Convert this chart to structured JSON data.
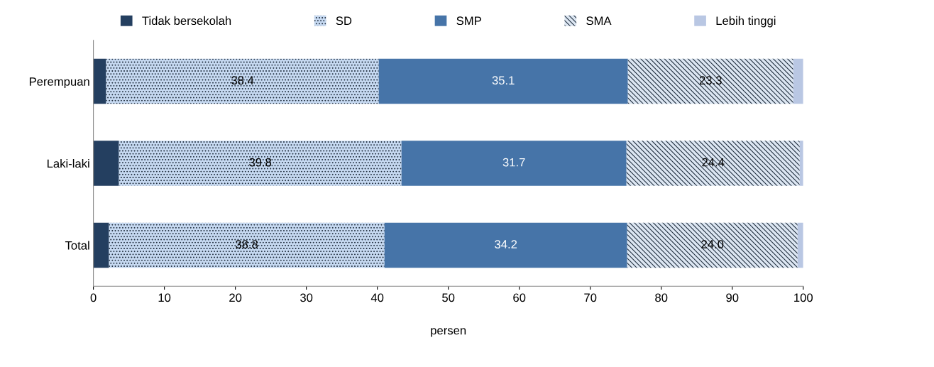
{
  "chart_data": {
    "type": "bar",
    "orientation": "horizontal",
    "stacked": true,
    "xlabel": "persen",
    "categories": [
      "Perempuan",
      "Laki-laki",
      "Total"
    ],
    "series": [
      {
        "name": "Tidak bersekolah",
        "color": "#243f60",
        "values": [
          1.8,
          3.6,
          2.2
        ]
      },
      {
        "name": "SD",
        "color": "#c6d9f1",
        "values": [
          38.4,
          39.8,
          38.8
        ],
        "value_labels": [
          "38.4",
          "39.8",
          "38.8"
        ]
      },
      {
        "name": "SMP",
        "color": "#4674a8",
        "values": [
          35.1,
          31.7,
          34.2
        ],
        "value_labels": [
          "35.1",
          "31.7",
          "34.2"
        ]
      },
      {
        "name": "SMA",
        "color": "#dce6f2",
        "values": [
          23.3,
          24.4,
          24.0
        ],
        "value_labels": [
          "23.3",
          "24.4",
          "24.0"
        ]
      },
      {
        "name": "Lebih tinggi",
        "color": "#b9c7e3",
        "values": [
          1.4,
          0.5,
          0.8
        ]
      }
    ],
    "xlim": [
      0,
      100
    ],
    "xticks": [
      0,
      10,
      20,
      30,
      40,
      50,
      60,
      70,
      80,
      90,
      100
    ],
    "grid": false,
    "legend": "top"
  }
}
